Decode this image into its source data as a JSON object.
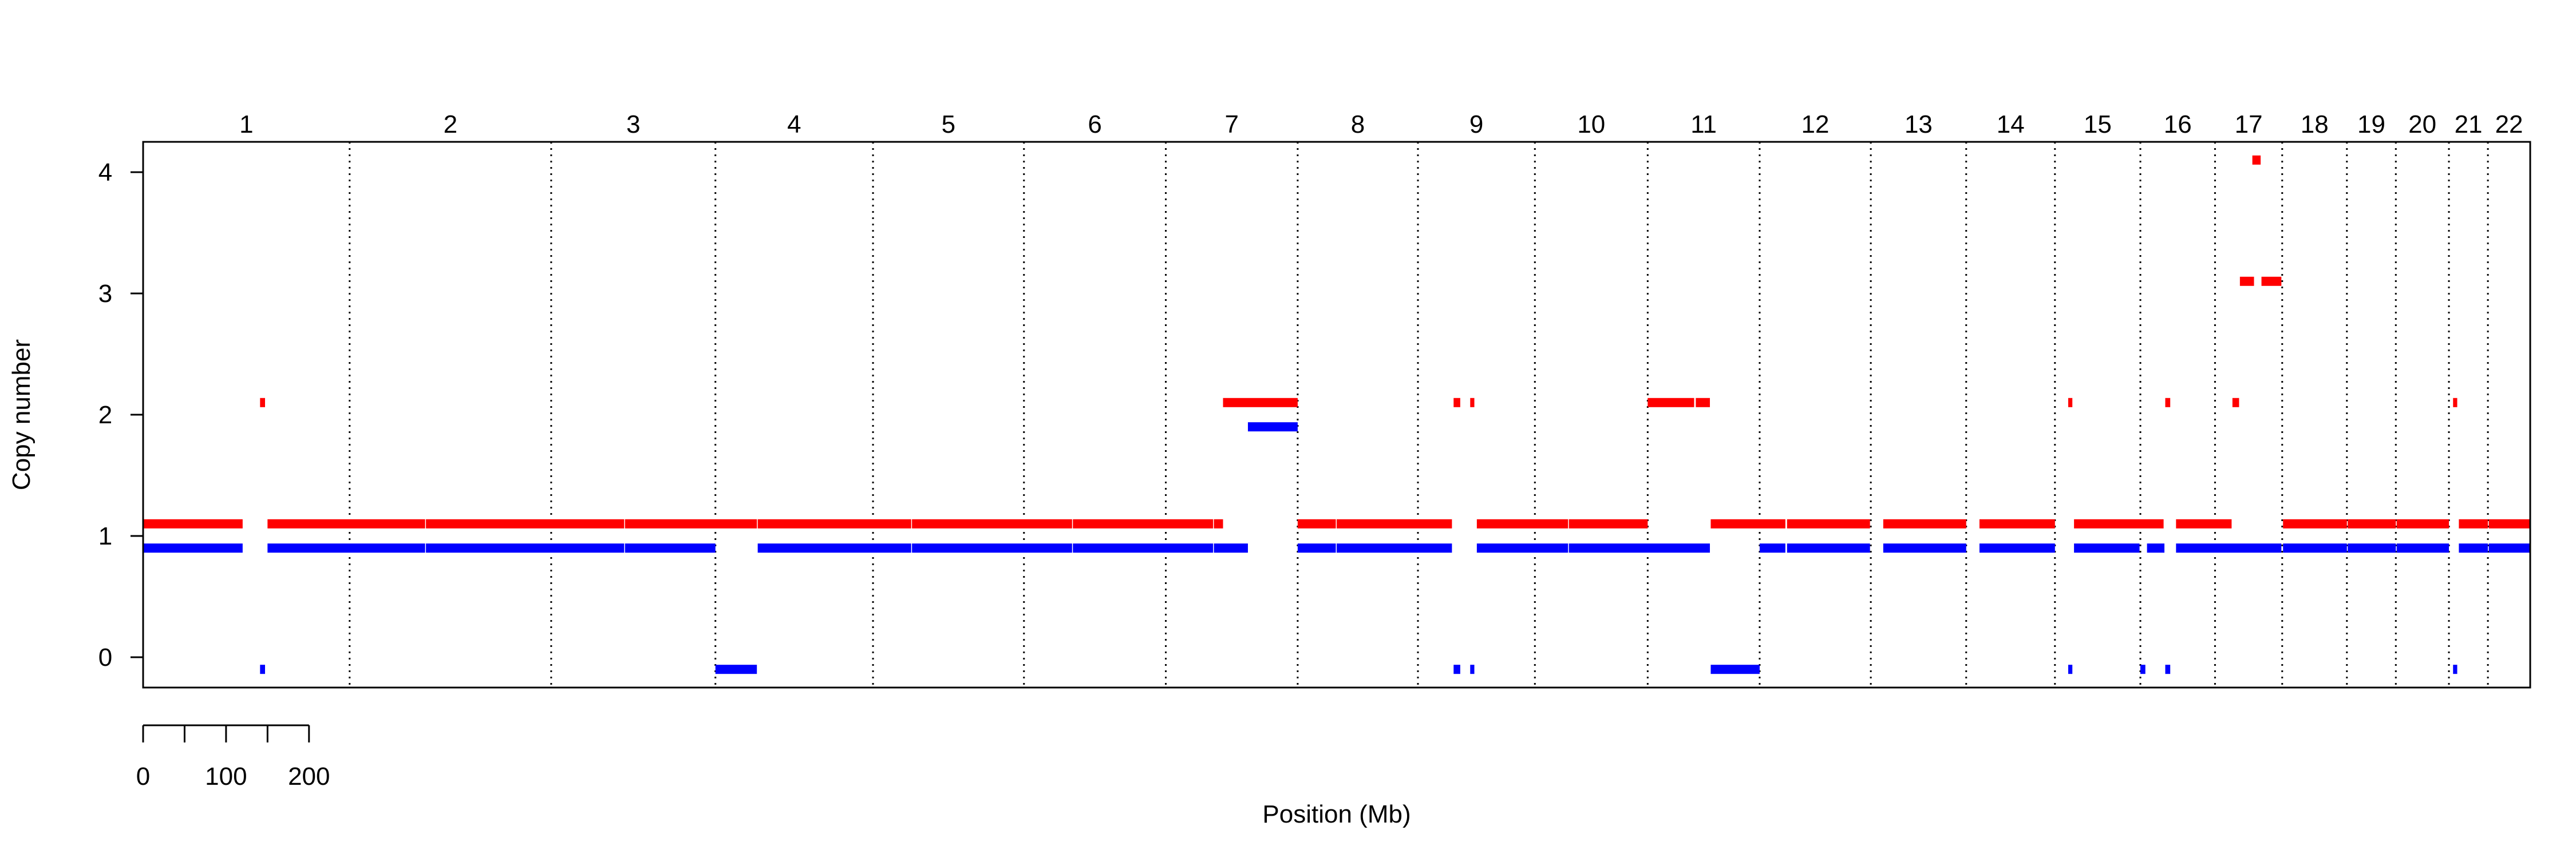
{
  "chart_data": {
    "type": "segments",
    "xlabel": "Position (Mb)",
    "ylabel": "Copy number",
    "ylim": [
      -0.25,
      4.25
    ],
    "yticks": [
      0,
      1,
      2,
      3,
      4
    ],
    "grid": false,
    "colors": {
      "major": "#ff0000",
      "minor": "#0000ff"
    },
    "scale_bar": {
      "ticks": [
        0,
        50,
        100,
        150,
        200
      ],
      "labels": [
        "0",
        "100",
        "200"
      ]
    },
    "chromosomes": [
      {
        "name": "1",
        "start": 0,
        "end": 249
      },
      {
        "name": "2",
        "start": 249,
        "end": 492
      },
      {
        "name": "3",
        "start": 492,
        "end": 690
      },
      {
        "name": "4",
        "start": 690,
        "end": 880
      },
      {
        "name": "5",
        "start": 880,
        "end": 1062
      },
      {
        "name": "6",
        "start": 1062,
        "end": 1233
      },
      {
        "name": "7",
        "start": 1233,
        "end": 1392
      },
      {
        "name": "8",
        "start": 1392,
        "end": 1537
      },
      {
        "name": "9",
        "start": 1537,
        "end": 1678
      },
      {
        "name": "10",
        "start": 1678,
        "end": 1814
      },
      {
        "name": "11",
        "start": 1814,
        "end": 1949
      },
      {
        "name": "12",
        "start": 1949,
        "end": 2083
      },
      {
        "name": "13",
        "start": 2083,
        "end": 2198
      },
      {
        "name": "14",
        "start": 2198,
        "end": 2305
      },
      {
        "name": "15",
        "start": 2305,
        "end": 2408
      },
      {
        "name": "16",
        "start": 2408,
        "end": 2498
      },
      {
        "name": "17",
        "start": 2498,
        "end": 2579
      },
      {
        "name": "18",
        "start": 2579,
        "end": 2657
      },
      {
        "name": "19",
        "start": 2657,
        "end": 2716
      },
      {
        "name": "20",
        "start": 2716,
        "end": 2780
      },
      {
        "name": "21",
        "start": 2780,
        "end": 2827
      },
      {
        "name": "22",
        "start": 2827,
        "end": 2878
      }
    ],
    "series": [
      {
        "name": "",
        "color": "#ff0000",
        "segments": [
          {
            "start": 0,
            "end": 120,
            "value": 1.1
          },
          {
            "start": 141,
            "end": 147,
            "value": 2.1
          },
          {
            "start": 150,
            "end": 340,
            "value": 1.1
          },
          {
            "start": 341,
            "end": 580,
            "value": 1.1
          },
          {
            "start": 581,
            "end": 740,
            "value": 1.1
          },
          {
            "start": 741,
            "end": 926,
            "value": 1.1
          },
          {
            "start": 927,
            "end": 1120,
            "value": 1.1
          },
          {
            "start": 1121,
            "end": 1290,
            "value": 1.1
          },
          {
            "start": 1291,
            "end": 1302,
            "value": 1.1
          },
          {
            "start": 1302,
            "end": 1392,
            "value": 2.1
          },
          {
            "start": 1392,
            "end": 1438,
            "value": 1.1
          },
          {
            "start": 1439,
            "end": 1578,
            "value": 1.1
          },
          {
            "start": 1580,
            "end": 1588,
            "value": 2.1
          },
          {
            "start": 1600,
            "end": 1605,
            "value": 2.1
          },
          {
            "start": 1608,
            "end": 1718,
            "value": 1.1
          },
          {
            "start": 1719,
            "end": 1814,
            "value": 1.1
          },
          {
            "start": 1814,
            "end": 1870,
            "value": 2.1
          },
          {
            "start": 1872,
            "end": 1889,
            "value": 2.1
          },
          {
            "start": 1890,
            "end": 1980,
            "value": 1.1
          },
          {
            "start": 1982,
            "end": 2082,
            "value": 1.1
          },
          {
            "start": 2098,
            "end": 2198,
            "value": 1.1
          },
          {
            "start": 2214,
            "end": 2305,
            "value": 1.1
          },
          {
            "start": 2321,
            "end": 2326,
            "value": 2.1
          },
          {
            "start": 2328,
            "end": 2436,
            "value": 1.1
          },
          {
            "start": 2438,
            "end": 2444,
            "value": 2.1
          },
          {
            "start": 2451,
            "end": 2518,
            "value": 1.1
          },
          {
            "start": 2519,
            "end": 2527,
            "value": 2.1
          },
          {
            "start": 2528,
            "end": 2545,
            "value": 3.1
          },
          {
            "start": 2543,
            "end": 2553,
            "value": 4.1
          },
          {
            "start": 2554,
            "end": 2578,
            "value": 3.1
          },
          {
            "start": 2580,
            "end": 2657,
            "value": 1.1
          },
          {
            "start": 2658,
            "end": 2716,
            "value": 1.1
          },
          {
            "start": 2717,
            "end": 2780,
            "value": 1.1
          },
          {
            "start": 2785,
            "end": 2790,
            "value": 2.1
          },
          {
            "start": 2792,
            "end": 2827,
            "value": 1.1
          },
          {
            "start": 2828,
            "end": 2878,
            "value": 1.1
          }
        ]
      },
      {
        "name": "",
        "color": "#0000ff",
        "segments": [
          {
            "start": 0,
            "end": 120,
            "value": 0.9
          },
          {
            "start": 141,
            "end": 147,
            "value": -0.1
          },
          {
            "start": 150,
            "end": 340,
            "value": 0.9
          },
          {
            "start": 341,
            "end": 580,
            "value": 0.9
          },
          {
            "start": 581,
            "end": 690,
            "value": 0.9
          },
          {
            "start": 690,
            "end": 740,
            "value": -0.1
          },
          {
            "start": 741,
            "end": 926,
            "value": 0.9
          },
          {
            "start": 927,
            "end": 1120,
            "value": 0.9
          },
          {
            "start": 1121,
            "end": 1290,
            "value": 0.9
          },
          {
            "start": 1291,
            "end": 1332,
            "value": 0.9
          },
          {
            "start": 1332,
            "end": 1392,
            "value": 1.9
          },
          {
            "start": 1392,
            "end": 1438,
            "value": 0.9
          },
          {
            "start": 1439,
            "end": 1578,
            "value": 0.9
          },
          {
            "start": 1580,
            "end": 1588,
            "value": -0.1
          },
          {
            "start": 1600,
            "end": 1605,
            "value": -0.1
          },
          {
            "start": 1608,
            "end": 1718,
            "value": 0.9
          },
          {
            "start": 1719,
            "end": 1889,
            "value": 0.9
          },
          {
            "start": 1890,
            "end": 1949,
            "value": -0.1
          },
          {
            "start": 1949,
            "end": 1980,
            "value": 0.9
          },
          {
            "start": 1982,
            "end": 2082,
            "value": 0.9
          },
          {
            "start": 2098,
            "end": 2198,
            "value": 0.9
          },
          {
            "start": 2214,
            "end": 2305,
            "value": 0.9
          },
          {
            "start": 2321,
            "end": 2326,
            "value": -0.1
          },
          {
            "start": 2328,
            "end": 2407,
            "value": 0.9
          },
          {
            "start": 2408,
            "end": 2414,
            "value": -0.1
          },
          {
            "start": 2416,
            "end": 2437,
            "value": 0.9
          },
          {
            "start": 2438,
            "end": 2444,
            "value": -0.1
          },
          {
            "start": 2451,
            "end": 2578,
            "value": 0.9
          },
          {
            "start": 2580,
            "end": 2657,
            "value": 0.9
          },
          {
            "start": 2658,
            "end": 2716,
            "value": 0.9
          },
          {
            "start": 2717,
            "end": 2780,
            "value": 0.9
          },
          {
            "start": 2785,
            "end": 2790,
            "value": -0.1
          },
          {
            "start": 2792,
            "end": 2827,
            "value": 0.9
          },
          {
            "start": 2828,
            "end": 2878,
            "value": 0.9
          }
        ]
      }
    ]
  }
}
